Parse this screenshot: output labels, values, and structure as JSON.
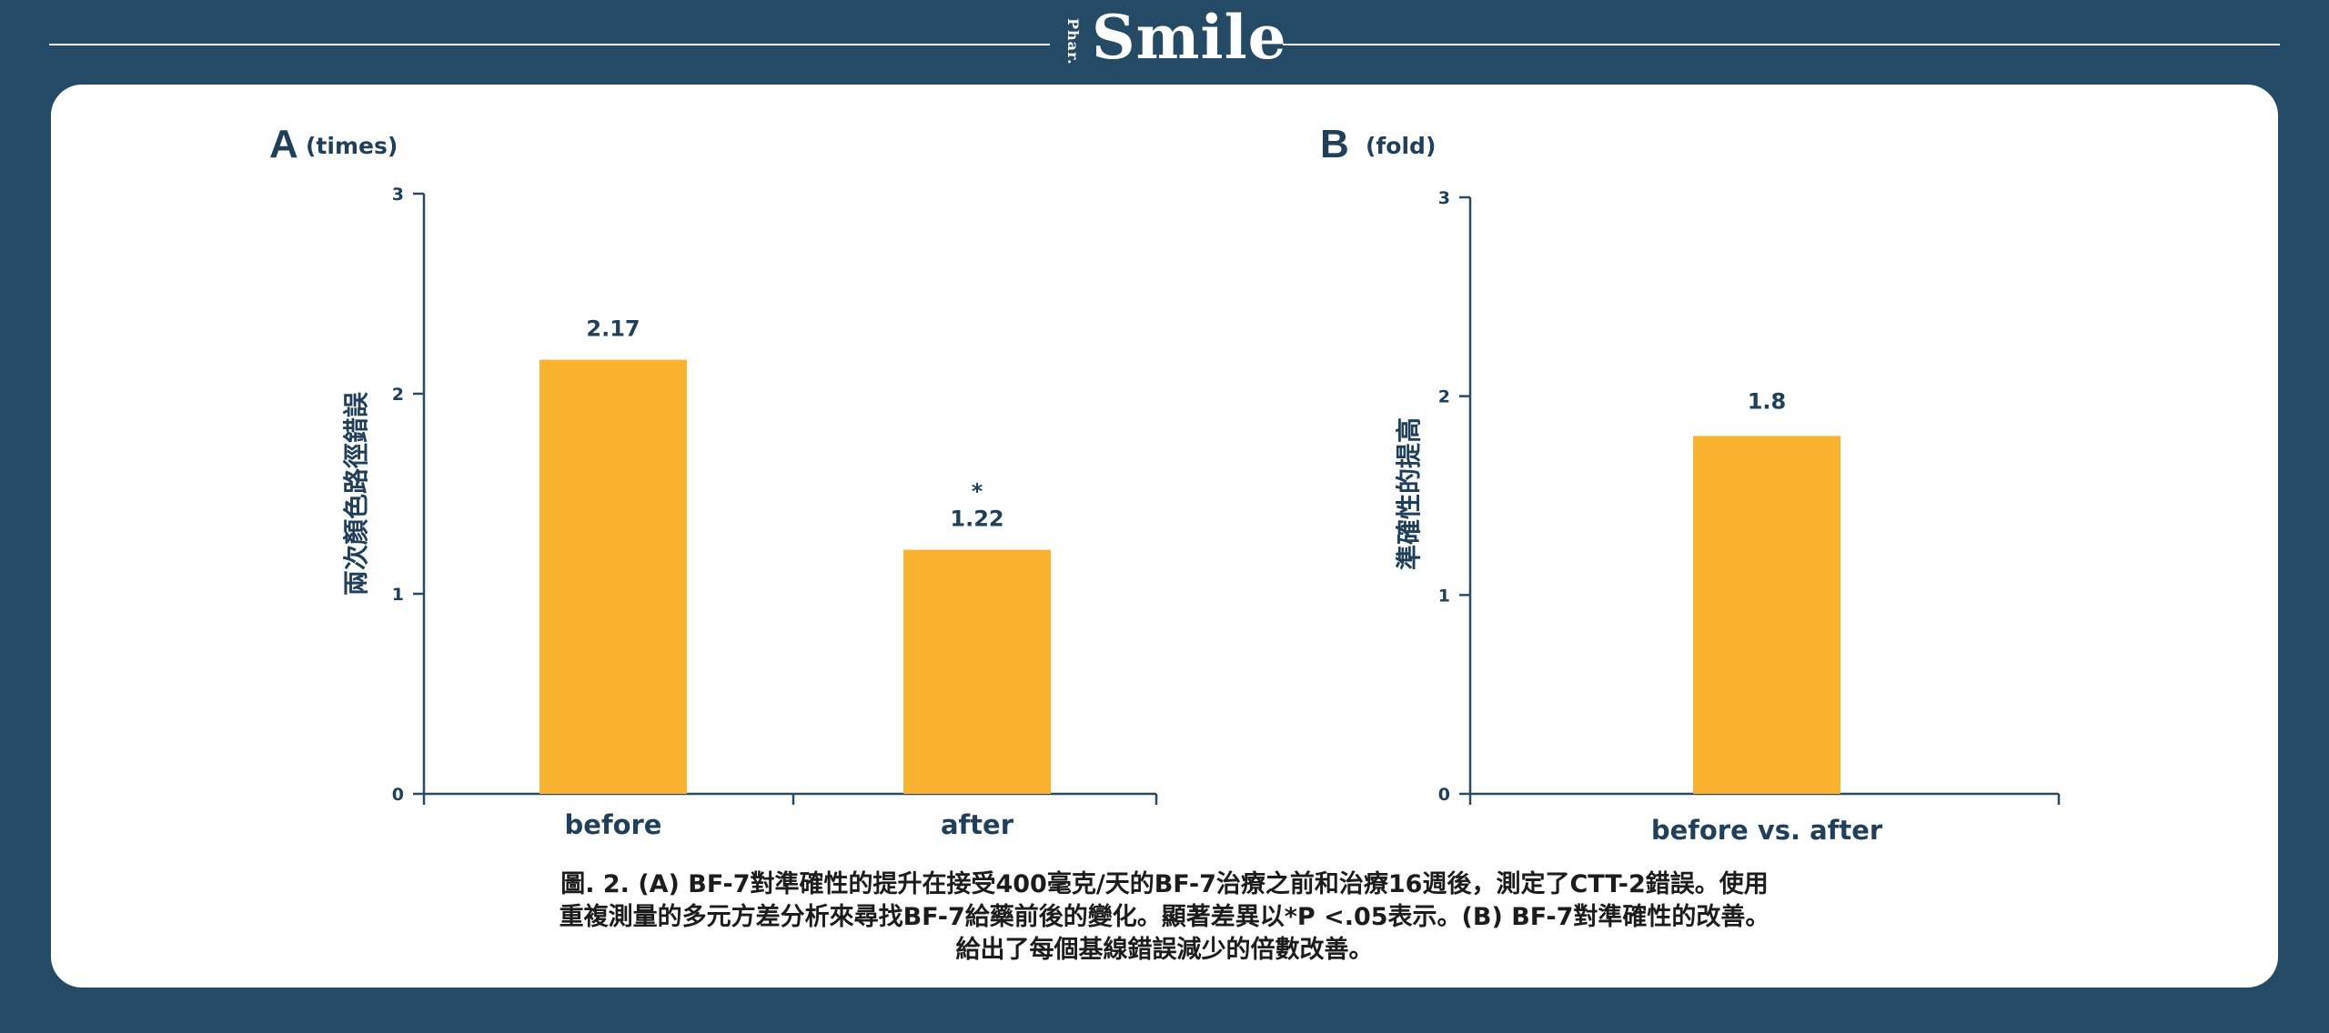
{
  "brand": {
    "small": "Phar.",
    "name": "Smile"
  },
  "chart_data": [
    {
      "type": "bar",
      "panel_letter": "A",
      "unit": "(times)",
      "ylabel": "兩次顏色路徑錯誤",
      "categories": [
        "before",
        "after"
      ],
      "values": [
        2.17,
        1.22
      ],
      "value_labels": [
        "2.17",
        "1.22"
      ],
      "significance": [
        "",
        "*"
      ],
      "ylim": [
        0,
        3
      ],
      "yticks": [
        "0",
        "1",
        "2",
        "3"
      ],
      "bar_color": "#fbb32f"
    },
    {
      "type": "bar",
      "panel_letter": "B",
      "unit": "(fold)",
      "ylabel": "準確性的提高",
      "categories": [
        "before vs. after"
      ],
      "values": [
        1.8
      ],
      "value_labels": [
        "1.8"
      ],
      "significance": [
        ""
      ],
      "ylim": [
        0,
        3
      ],
      "yticks": [
        "0",
        "1",
        "2",
        "3"
      ],
      "bar_color": "#fbb32f"
    }
  ],
  "caption": {
    "line1": "圖. 2. (A) BF-7對準確性的提升在接受400毫克/天的BF-7治療之前和治療16週後，測定了CTT-2錯誤。使用",
    "line2": "重複測量的多元方差分析來尋找BF-7給藥前後的變化。顯著差異以*P <.05表示。(B) BF-7對準確性的改善。",
    "line3": "給出了每個基線錯誤減少的倍數改善。"
  },
  "colors": {
    "background": "#254a66",
    "axis": "#2b4a63",
    "bar": "#fbb32f",
    "text": "#1f3f5a"
  }
}
